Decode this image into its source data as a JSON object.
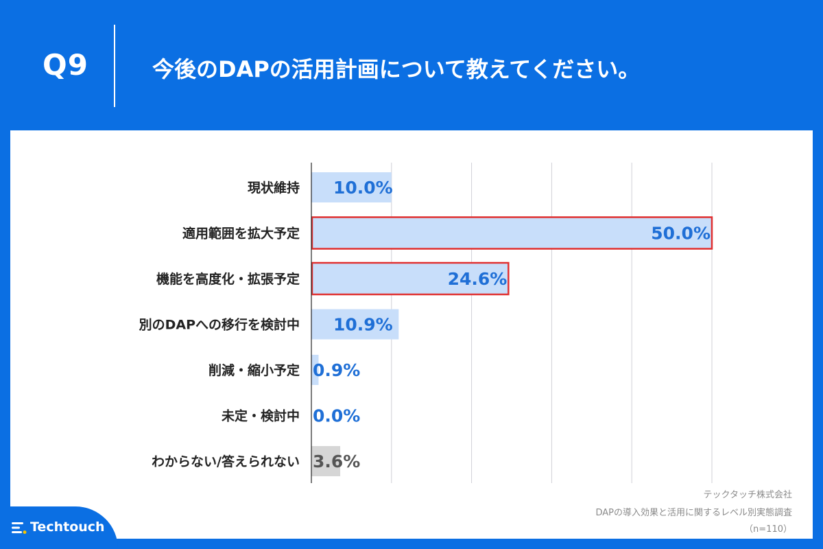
{
  "header": {
    "question_number": "Q9",
    "question_text": "今後のDAPの活用計画について教えてください。"
  },
  "chart_data": {
    "type": "bar",
    "orientation": "horizontal",
    "categories": [
      "現状維持",
      "適用範囲を拡大予定",
      "機能を高度化・拡張予定",
      "別のDAPへの移行を検討中",
      "削減・縮小予定",
      "未定・検討中",
      "わからない/答えられない"
    ],
    "values": [
      10.0,
      50.0,
      24.6,
      10.9,
      0.9,
      0.0,
      3.6
    ],
    "value_labels": [
      "10.0%",
      "50.0%",
      "24.6%",
      "10.9%",
      "0.9%",
      "0.0%",
      "3.6%"
    ],
    "highlighted": [
      false,
      true,
      true,
      false,
      false,
      false,
      false
    ],
    "xlim": [
      0,
      50
    ],
    "grid": true,
    "colors": {
      "bar": "#c8defa",
      "bar_unknown": "#d6d6d6",
      "label": "#1f6fd6",
      "label_unknown": "#555555",
      "highlight_border": "#e03030",
      "grid": "#cfcfd6"
    }
  },
  "source": {
    "company": "テックタッチ株式会社",
    "survey": "DAPの導入効果と活用に関するレベル別実態調査",
    "sample": "（n=110）"
  },
  "brand": {
    "name": "Techtouch",
    "icon": "techtouch-logo-icon"
  }
}
